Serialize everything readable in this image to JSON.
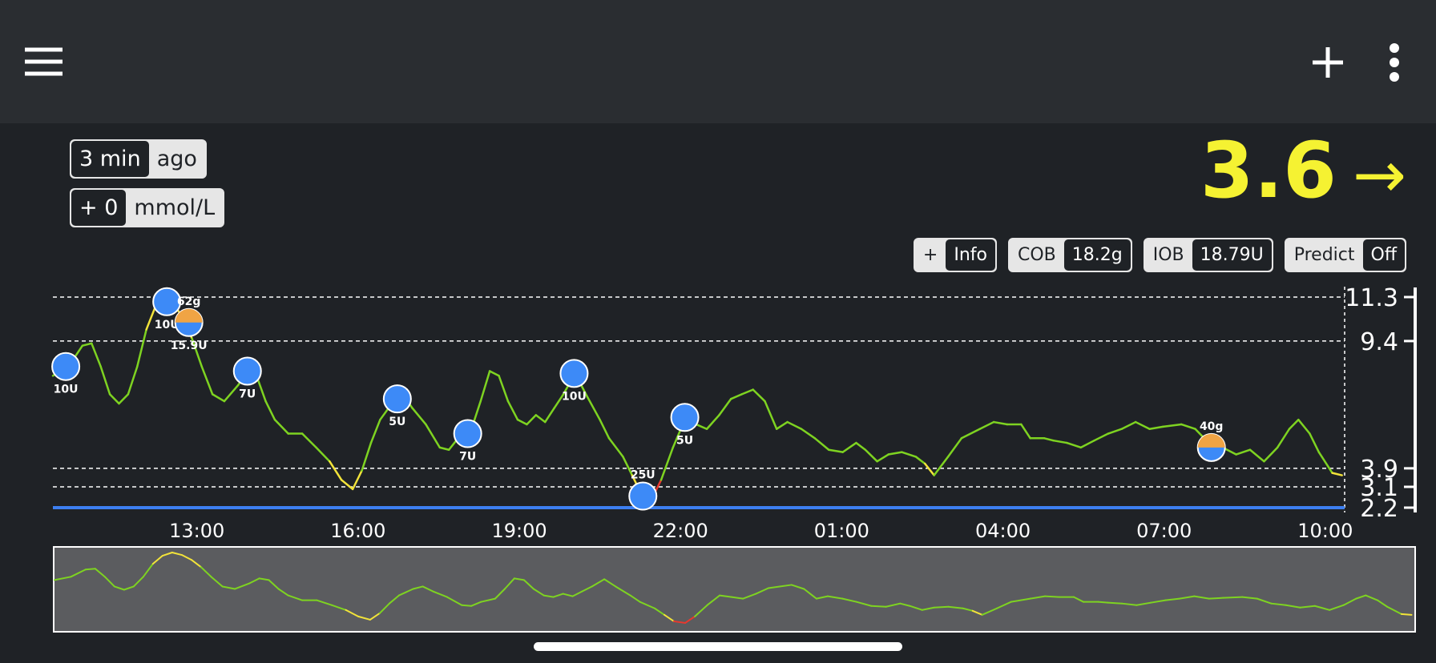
{
  "status": {
    "age": "3 min",
    "age_unit": "ago",
    "delta": "+ 0",
    "units": "mmol/L",
    "bg": "3.6",
    "direction": "→"
  },
  "pills": [
    {
      "label": "+",
      "value": "Info"
    },
    {
      "label": "COB",
      "value": "18.2g"
    },
    {
      "label": "IOB",
      "value": "18.79U"
    },
    {
      "label": "Predict",
      "value": "Off"
    }
  ],
  "chart_data": {
    "type": "line",
    "xlim": [
      10.32,
      34.36
    ],
    "ylim": [
      2.2,
      11.3
    ],
    "xticks": [
      {
        "value": 13,
        "label": "13:00"
      },
      {
        "value": 16,
        "label": "16:00"
      },
      {
        "value": 19,
        "label": "19:00"
      },
      {
        "value": 22,
        "label": "22:00"
      },
      {
        "value": 25,
        "label": "01:00"
      },
      {
        "value": 28,
        "label": "04:00"
      },
      {
        "value": 31,
        "label": "07:00"
      },
      {
        "value": 34,
        "label": "10:00"
      }
    ],
    "yticks": [
      2.2,
      3.1,
      3.9,
      9.4,
      11.3
    ],
    "line_colors": {
      "normal": "#7ed321",
      "warning": "#f2e33a",
      "urgent": "#e8392f"
    },
    "series": [
      {
        "x": [
          10.32,
          10.61,
          10.87,
          11.04,
          11.21,
          11.38,
          11.55,
          11.72,
          11.89,
          12.06,
          12.23,
          12.4,
          12.57,
          12.74,
          12.91,
          13.09,
          13.29,
          13.51,
          13.77,
          13.94,
          14.11,
          14.28,
          14.45,
          14.7,
          14.96,
          15.22,
          15.47,
          15.69,
          15.9,
          16.07,
          16.24,
          16.41,
          16.66,
          16.83,
          17.01,
          17.26,
          17.52,
          17.69,
          17.86,
          18.11,
          18.28,
          18.45,
          18.62,
          18.79,
          18.97,
          19.14,
          19.31,
          19.48,
          19.65,
          19.82,
          20.04,
          20.24,
          20.5,
          20.67,
          20.93,
          21.1,
          21.27,
          21.47,
          21.64,
          21.86,
          22.08,
          22.29,
          22.49,
          22.72,
          22.94,
          23.14,
          23.35,
          23.57,
          23.79,
          23.99,
          24.25,
          24.5,
          24.76,
          25.02,
          25.27,
          25.44,
          25.66,
          25.87,
          26.12,
          26.38,
          26.55,
          26.72,
          26.98,
          27.23,
          27.57,
          27.83,
          28.08,
          28.34,
          28.51,
          28.77,
          28.94,
          29.19,
          29.45,
          29.7,
          29.96,
          30.21,
          30.47,
          30.73,
          30.98,
          31.32,
          31.58,
          31.83,
          32.09,
          32.34,
          32.6,
          32.86,
          33.11,
          33.33,
          33.5,
          33.71,
          33.88,
          34.13,
          34.31
        ],
        "values": [
          7.9,
          8.3,
          9.2,
          9.3,
          8.3,
          7.1,
          6.7,
          7.1,
          8.3,
          9.9,
          10.9,
          11.3,
          11.0,
          10.4,
          9.5,
          8.3,
          7.1,
          6.8,
          7.5,
          8.1,
          7.9,
          6.8,
          6.0,
          5.4,
          5.4,
          4.8,
          4.2,
          3.4,
          3.0,
          3.8,
          5.0,
          6.0,
          6.8,
          7.1,
          6.5,
          5.8,
          4.8,
          4.7,
          5.2,
          5.6,
          6.8,
          8.1,
          7.9,
          6.8,
          6.0,
          5.8,
          6.2,
          5.9,
          6.5,
          7.1,
          8.0,
          7.1,
          6.0,
          5.2,
          4.4,
          3.6,
          2.8,
          2.6,
          3.4,
          4.8,
          6.0,
          5.8,
          5.6,
          6.2,
          6.9,
          7.1,
          7.3,
          6.8,
          5.6,
          5.9,
          5.6,
          5.2,
          4.7,
          4.6,
          5.0,
          4.7,
          4.2,
          4.5,
          4.6,
          4.4,
          4.1,
          3.6,
          4.4,
          5.2,
          5.6,
          5.9,
          5.8,
          5.8,
          5.2,
          5.2,
          5.1,
          5.0,
          4.8,
          5.1,
          5.4,
          5.6,
          5.9,
          5.6,
          5.7,
          5.8,
          5.6,
          5.0,
          4.8,
          4.5,
          4.7,
          4.2,
          4.8,
          5.6,
          6.0,
          5.4,
          4.6,
          3.7,
          3.6
        ]
      }
    ],
    "treatments": [
      {
        "time": 10.56,
        "bg": 8.3,
        "label": "10U",
        "colors": [
          "#3d8af7"
        ]
      },
      {
        "time": 12.44,
        "bg": 11.1,
        "label": "10U",
        "colors": [
          "#3d8af7"
        ]
      },
      {
        "time": 12.85,
        "bg": 10.2,
        "label": "15.9U",
        "top_label": "62g",
        "colors": [
          "#f0a444",
          "#3d8af7"
        ]
      },
      {
        "time": 13.94,
        "bg": 8.1,
        "label": "7U",
        "colors": [
          "#3d8af7"
        ]
      },
      {
        "time": 16.73,
        "bg": 6.9,
        "label": "5U",
        "colors": [
          "#3d8af7"
        ]
      },
      {
        "time": 18.04,
        "bg": 5.4,
        "label": "7U",
        "colors": [
          "#3d8af7"
        ]
      },
      {
        "time": 20.02,
        "bg": 8.0,
        "label": "10U",
        "colors": [
          "#3d8af7"
        ]
      },
      {
        "time": 21.3,
        "bg": 2.7,
        "top_label": "25U",
        "colors": [
          "#3d8af7"
        ]
      },
      {
        "time": 22.08,
        "bg": 6.1,
        "label": "5U",
        "colors": [
          "#3d8af7"
        ]
      },
      {
        "time": 31.88,
        "bg": 4.8,
        "top_label": "40g",
        "colors": [
          "#f0a444",
          "#3d8af7"
        ]
      }
    ]
  }
}
